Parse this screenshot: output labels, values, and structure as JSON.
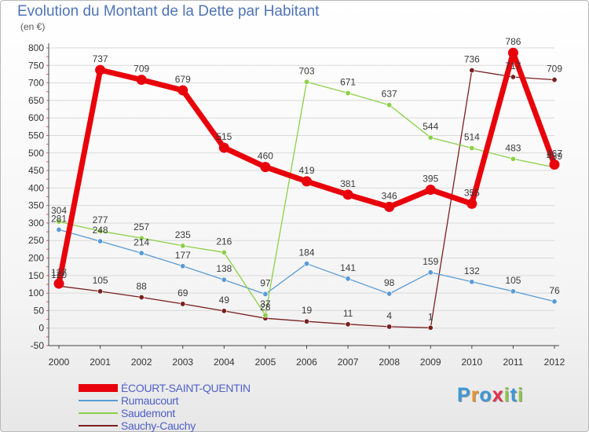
{
  "title": "Evolution du Montant de la Dette par Habitant",
  "unit_label": "(en €)",
  "logo": {
    "text": "Proxiti",
    "letters": [
      "P",
      "r",
      "o",
      "x",
      "i",
      "t",
      "i"
    ],
    "colors": [
      "#3c98d6",
      "#e89230",
      "#3c98d6",
      "#e2304d",
      "#8cc44a",
      "#3c98d6",
      "#8cc44a"
    ]
  },
  "chart_data": {
    "type": "line",
    "x": [
      2000,
      2001,
      2002,
      2003,
      2004,
      2005,
      2006,
      2007,
      2008,
      2009,
      2010,
      2011,
      2012
    ],
    "ylim": [
      -50,
      800
    ],
    "yticks": [
      -50,
      0,
      50,
      100,
      150,
      200,
      250,
      300,
      350,
      400,
      450,
      500,
      550,
      600,
      650,
      700,
      750,
      800
    ],
    "grid": "horizontal",
    "legend_position": "bottom-left",
    "series": [
      {
        "name": "ÉCOURT-SAINT-QUENTIN",
        "color": "#e8000a",
        "values": [
          127,
          737,
          709,
          679,
          515,
          460,
          419,
          381,
          346,
          395,
          355,
          786,
          467
        ],
        "labels": [
          "127",
          "737",
          "709",
          "679",
          "515",
          "460",
          "419",
          "381",
          "346",
          "395",
          "355",
          "786",
          "467"
        ]
      },
      {
        "name": "Rumaucourt",
        "color": "#5a9bd4",
        "values": [
          281,
          248,
          214,
          177,
          138,
          97,
          184,
          141,
          98,
          159,
          132,
          105,
          76
        ],
        "labels": [
          "281",
          "248",
          "214",
          "177",
          "138",
          "97",
          "184",
          "141",
          "98",
          "159",
          "132",
          "105",
          "76"
        ]
      },
      {
        "name": "Saudemont",
        "color": "#8cd048",
        "values": [
          304,
          277,
          257,
          235,
          216,
          37,
          703,
          671,
          637,
          544,
          514,
          483,
          459
        ],
        "labels": [
          "304",
          "277",
          "257",
          "235",
          "216",
          "37",
          "703",
          "671",
          "637",
          "544",
          "514",
          "483",
          "459"
        ]
      },
      {
        "name": "Sauchy-Cauchy",
        "color": "#7a1f1f",
        "values": [
          120,
          105,
          88,
          69,
          49,
          28,
          19,
          11,
          4,
          1,
          736,
          717,
          709
        ],
        "labels": [
          "120",
          "105",
          "88",
          "69",
          "49",
          "28",
          "19",
          "11",
          "4",
          "1",
          "736",
          "717",
          "709"
        ]
      }
    ]
  }
}
